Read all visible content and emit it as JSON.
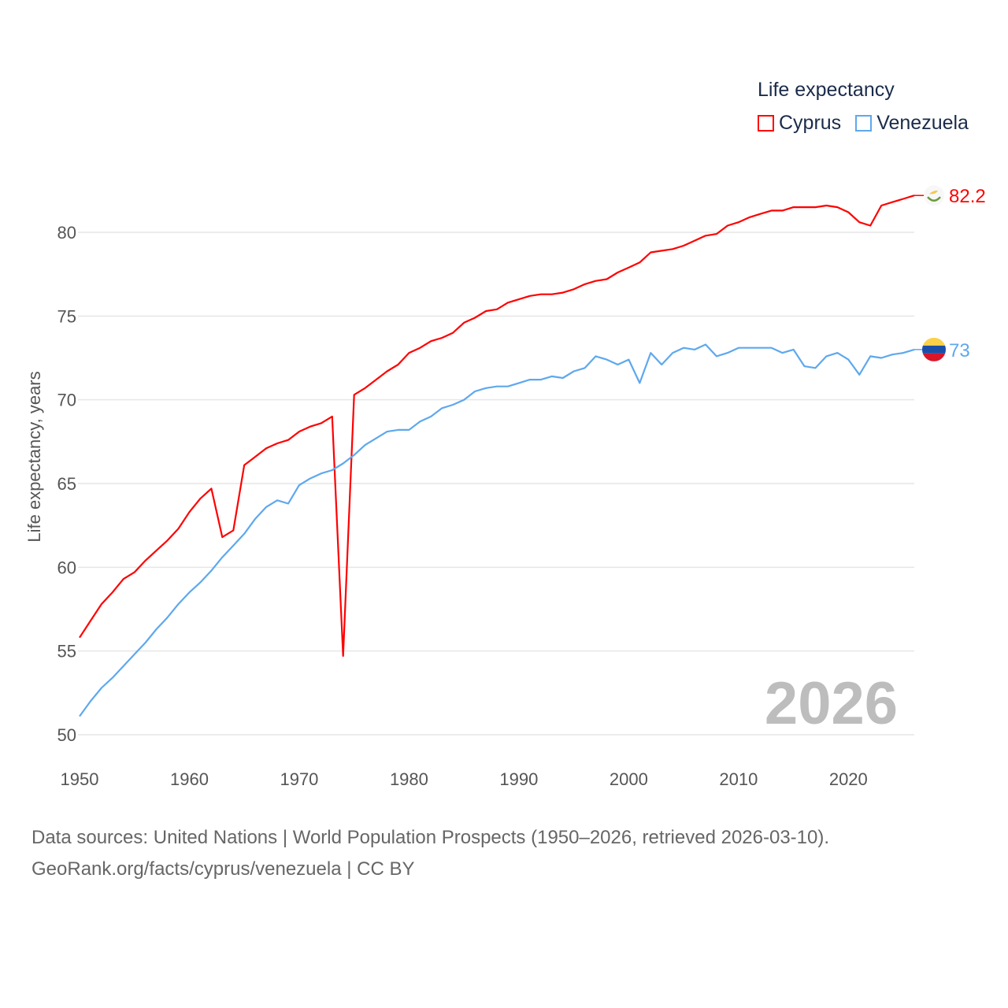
{
  "chart_data": {
    "type": "line",
    "title": "Life expectancy",
    "xlabel": "",
    "ylabel": "Life expectancy, years",
    "xlim": [
      1950,
      2026
    ],
    "ylim": [
      50,
      83
    ],
    "yticks": [
      50,
      55,
      60,
      65,
      70,
      75,
      80
    ],
    "xticks": [
      1950,
      1960,
      1970,
      1980,
      1990,
      2000,
      2010,
      2020
    ],
    "grid": true,
    "legend_position": "top-right",
    "x_start": 1950,
    "series": [
      {
        "name": "Cyprus",
        "color": "#ff0000",
        "end_label": "82.2",
        "values": [
          55.8,
          56.8,
          57.8,
          58.5,
          59.3,
          59.7,
          60.4,
          61.0,
          61.6,
          62.3,
          63.3,
          64.1,
          64.7,
          61.8,
          62.2,
          66.1,
          66.6,
          67.1,
          67.4,
          67.6,
          68.1,
          68.4,
          68.6,
          69.0,
          54.7,
          70.3,
          70.7,
          71.2,
          71.7,
          72.1,
          72.8,
          73.1,
          73.5,
          73.7,
          74.0,
          74.6,
          74.9,
          75.3,
          75.4,
          75.8,
          76.0,
          76.2,
          76.3,
          76.3,
          76.4,
          76.6,
          76.9,
          77.1,
          77.2,
          77.6,
          77.9,
          78.2,
          78.8,
          78.9,
          79.0,
          79.2,
          79.5,
          79.8,
          79.9,
          80.4,
          80.6,
          80.9,
          81.1,
          81.3,
          81.3,
          81.5,
          81.5,
          81.5,
          81.6,
          81.5,
          81.2,
          80.6,
          80.4,
          81.6,
          81.8,
          82.0,
          82.2
        ]
      },
      {
        "name": "Venezuela",
        "color": "#5ea8ee",
        "end_label": "73",
        "values": [
          51.1,
          52.0,
          52.8,
          53.4,
          54.1,
          54.8,
          55.5,
          56.3,
          57.0,
          57.8,
          58.5,
          59.1,
          59.8,
          60.6,
          61.3,
          62.0,
          62.9,
          63.6,
          64.0,
          63.8,
          64.9,
          65.3,
          65.6,
          65.8,
          66.2,
          66.7,
          67.3,
          67.7,
          68.1,
          68.2,
          68.2,
          68.7,
          69.0,
          69.5,
          69.7,
          70.0,
          70.5,
          70.7,
          70.8,
          70.8,
          71.0,
          71.2,
          71.2,
          71.4,
          71.3,
          71.7,
          71.9,
          72.6,
          72.4,
          72.1,
          72.4,
          71.0,
          72.8,
          72.1,
          72.8,
          73.1,
          73.0,
          73.3,
          72.6,
          72.8,
          73.1,
          73.1,
          73.1,
          73.1,
          72.8,
          73.0,
          72.0,
          71.9,
          72.6,
          72.8,
          72.4,
          71.5,
          72.6,
          72.5,
          72.7,
          72.8,
          73.0
        ]
      }
    ]
  },
  "legend": {
    "title": "Life expectancy",
    "items": [
      "Cyprus",
      "Venezuela"
    ]
  },
  "year_watermark": "2026",
  "source": {
    "line1": "Data sources: United Nations | World Population Prospects (1950–2026, retrieved 2026-03-10).",
    "line2": "GeoRank.org/facts/cyprus/venezuela | CC BY"
  }
}
